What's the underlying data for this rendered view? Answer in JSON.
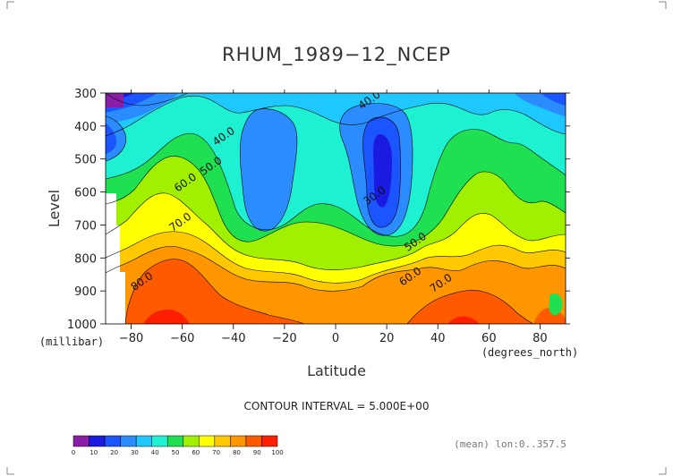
{
  "chart_data": {
    "type": "heatmap",
    "title": "RHUM_1989−12_NCEP",
    "xlabel": "Latitude",
    "xunit": "(degrees_north)",
    "ylabel": "Level",
    "yunit": "(millibar)",
    "xlim": [
      -90,
      90
    ],
    "ylim": [
      1000,
      300
    ],
    "x_ticks": [
      "−80",
      "−60",
      "−40",
      "−20",
      "0",
      "20",
      "40",
      "60",
      "80"
    ],
    "x_tick_values": [
      -80,
      -60,
      -40,
      -20,
      0,
      20,
      40,
      60,
      80
    ],
    "y_ticks": [
      "300",
      "400",
      "500",
      "600",
      "700",
      "800",
      "900",
      "1000"
    ],
    "y_tick_values": [
      300,
      400,
      500,
      600,
      700,
      800,
      900,
      1000
    ],
    "contour_interval_text": "CONTOUR INTERVAL = 5.000E+00",
    "footer_text": "(mean) lon:0..357.5",
    "contour_labels": [
      {
        "text": "40.0",
        "x": 14,
        "y": 330
      },
      {
        "text": "40.0",
        "x": -43,
        "y": 440
      },
      {
        "text": "50.0",
        "x": -48,
        "y": 530
      },
      {
        "text": "60.0",
        "x": -58,
        "y": 580
      },
      {
        "text": "70.0",
        "x": -60,
        "y": 700
      },
      {
        "text": "30.0",
        "x": 16,
        "y": 620
      },
      {
        "text": "50.0",
        "x": 32,
        "y": 760
      },
      {
        "text": "60.0",
        "x": 30,
        "y": 865
      },
      {
        "text": "70.0",
        "x": 42,
        "y": 885
      },
      {
        "text": "80.0",
        "x": -75,
        "y": 880
      }
    ],
    "colorbar": {
      "levels": [
        "0",
        "10",
        "20",
        "30",
        "40",
        "50",
        "60",
        "70",
        "80",
        "90",
        "100"
      ],
      "colors": [
        "#8a1ea8",
        "#1a1ae0",
        "#1a55ff",
        "#2a8cff",
        "#1ec8ff",
        "#1ef0d2",
        "#1ee050",
        "#a0f000",
        "#ffff00",
        "#ffc800",
        "#ff9600",
        "#ff5a00",
        "#ff1e00"
      ]
    },
    "grid": false
  }
}
